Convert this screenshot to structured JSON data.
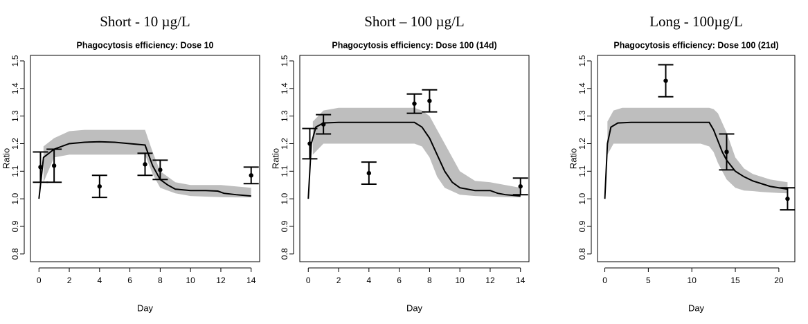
{
  "chart_data": [
    {
      "type": "line",
      "heading": "Short - 10 µg/L",
      "title": "Phagocytosis efficiency: Dose 10",
      "x_label": "Day",
      "y_label": "Ratio",
      "xlim": [
        -0.56,
        14.56
      ],
      "ylim": [
        0.772,
        1.52
      ],
      "xticks": [
        0,
        2,
        4,
        6,
        8,
        10,
        12,
        14
      ],
      "yticks": [
        0.8,
        0.9,
        {
          "value": 1,
          "label": "1.0"
        },
        1.1,
        1.2,
        1.3,
        1.4,
        1.5
      ],
      "model": {
        "color": "#000000",
        "x": [
          0,
          0.3,
          1,
          2,
          3,
          4,
          5,
          6,
          7,
          7.5,
          8,
          8.5,
          9,
          10,
          11,
          11.8,
          12.2,
          13,
          14
        ],
        "values": [
          1.0,
          1.15,
          1.18,
          1.2,
          1.205,
          1.207,
          1.205,
          1.2,
          1.195,
          1.12,
          1.07,
          1.05,
          1.035,
          1.03,
          1.03,
          1.028,
          1.02,
          1.015,
          1.01
        ]
      },
      "band": {
        "color": "#bebebe",
        "x": [
          0.3,
          1,
          2,
          3,
          4,
          5,
          6,
          7,
          7.5,
          8,
          9,
          10,
          11,
          12,
          13,
          14
        ],
        "upper": [
          1.19,
          1.22,
          1.245,
          1.25,
          1.25,
          1.25,
          1.25,
          1.25,
          1.17,
          1.1,
          1.06,
          1.05,
          1.05,
          1.05,
          1.045,
          1.04
        ],
        "lower": [
          1.06,
          1.15,
          1.16,
          1.16,
          1.16,
          1.16,
          1.16,
          1.16,
          1.09,
          1.04,
          1.02,
          1.01,
          1.008,
          1.006,
          1.005,
          1.005
        ]
      },
      "points": {
        "color": "#000000",
        "x": [
          0.1,
          1,
          4,
          7,
          8,
          14
        ],
        "values": [
          1.115,
          1.12,
          1.045,
          1.125,
          1.105,
          1.085
        ],
        "errors": [
          0.055,
          0.06,
          0.04,
          0.04,
          0.035,
          0.03
        ]
      }
    },
    {
      "type": "line",
      "heading": "Short – 100 µg/L",
      "title": "Phagocytosis efficiency: Dose 100 (14d)",
      "x_label": "Day",
      "y_label": "Ratio",
      "xlim": [
        -0.56,
        14.56
      ],
      "ylim": [
        0.772,
        1.52
      ],
      "xticks": [
        0,
        2,
        4,
        6,
        8,
        10,
        12,
        14
      ],
      "yticks": [
        0.8,
        0.9,
        {
          "value": 1,
          "label": "1.0"
        },
        1.1,
        1.2,
        1.3,
        1.4,
        1.5
      ],
      "model": {
        "color": "#000000",
        "x": [
          0,
          0.2,
          0.5,
          1,
          2,
          3,
          4,
          5,
          6,
          7,
          7.5,
          8,
          8.5,
          9,
          9.5,
          10,
          11,
          12,
          12.5,
          13,
          14
        ],
        "values": [
          1.0,
          1.2,
          1.26,
          1.275,
          1.277,
          1.277,
          1.277,
          1.277,
          1.277,
          1.277,
          1.26,
          1.22,
          1.16,
          1.1,
          1.06,
          1.04,
          1.03,
          1.03,
          1.02,
          1.015,
          1.01
        ]
      },
      "band": {
        "color": "#bebebe",
        "x": [
          0.3,
          1,
          2,
          3,
          4,
          5,
          6,
          7,
          7.5,
          8,
          8.5,
          9,
          10,
          11,
          12,
          13,
          14
        ],
        "upper": [
          1.28,
          1.32,
          1.33,
          1.33,
          1.33,
          1.33,
          1.33,
          1.33,
          1.32,
          1.3,
          1.25,
          1.2,
          1.1,
          1.065,
          1.06,
          1.05,
          1.04
        ],
        "lower": [
          1.16,
          1.2,
          1.2,
          1.2,
          1.2,
          1.2,
          1.2,
          1.2,
          1.19,
          1.15,
          1.08,
          1.04,
          1.015,
          1.01,
          1.008,
          1.006,
          1.005
        ]
      },
      "points": {
        "color": "#000000",
        "x": [
          0.1,
          1,
          4,
          7,
          8,
          14
        ],
        "values": [
          1.2,
          1.27,
          1.093,
          1.345,
          1.355,
          1.045
        ],
        "errors": [
          0.055,
          0.035,
          0.04,
          0.035,
          0.04,
          0.03
        ]
      }
    },
    {
      "type": "line",
      "heading": "Long - 100µg/L",
      "title": "Phagocytosis efficiency: Dose 100 (21d)",
      "x_label": "Day",
      "y_label": "Ratio",
      "xlim": [
        -0.84,
        21.84
      ],
      "ylim": [
        0.772,
        1.52
      ],
      "xticks": [
        0,
        5,
        10,
        15,
        20
      ],
      "yticks": [
        0.8,
        0.9,
        {
          "value": 1,
          "label": "1.0"
        },
        1.1,
        1.2,
        1.3,
        1.4,
        1.5
      ],
      "model": {
        "color": "#000000",
        "x": [
          0,
          0.3,
          0.7,
          1.5,
          3,
          6,
          9,
          12,
          12.5,
          13,
          13.5,
          14,
          15,
          16,
          17,
          18,
          19,
          20,
          21
        ],
        "values": [
          1.0,
          1.2,
          1.26,
          1.275,
          1.277,
          1.277,
          1.277,
          1.277,
          1.25,
          1.21,
          1.17,
          1.14,
          1.1,
          1.08,
          1.065,
          1.055,
          1.045,
          1.04,
          1.035
        ]
      },
      "band": {
        "color": "#bebebe",
        "x": [
          0.3,
          1,
          2,
          5,
          8,
          11,
          12,
          12.5,
          13,
          14,
          15,
          16,
          17,
          18,
          19,
          20,
          21
        ],
        "upper": [
          1.28,
          1.32,
          1.33,
          1.33,
          1.33,
          1.33,
          1.33,
          1.325,
          1.31,
          1.24,
          1.15,
          1.11,
          1.09,
          1.08,
          1.07,
          1.065,
          1.06
        ],
        "lower": [
          1.16,
          1.2,
          1.2,
          1.2,
          1.2,
          1.2,
          1.19,
          1.17,
          1.13,
          1.07,
          1.04,
          1.03,
          1.028,
          1.025,
          1.023,
          1.021,
          1.02
        ]
      },
      "points": {
        "color": "#000000",
        "x": [
          7,
          14,
          21
        ],
        "values": [
          1.428,
          1.17,
          1.0
        ],
        "errors": [
          0.058,
          0.065,
          0.04
        ]
      }
    }
  ]
}
